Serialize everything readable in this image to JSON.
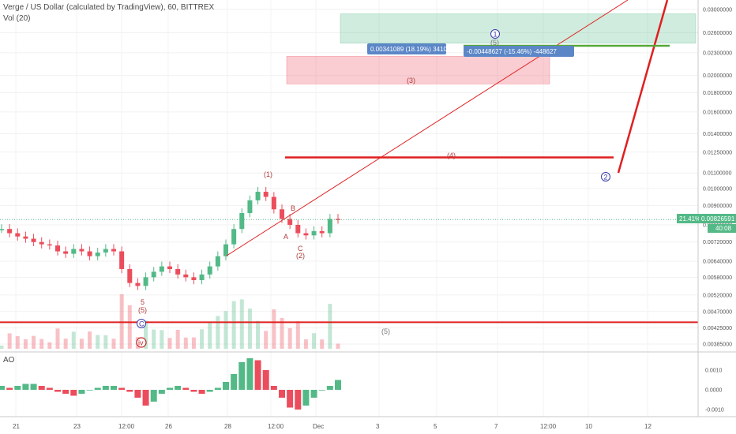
{
  "header": {
    "title": "Verge / US Dollar (calculated by TradingView), 60, BITTREX",
    "volume_label": "Vol (20)",
    "indicator_label": "AO"
  },
  "price_badge": {
    "percent": "21.41%",
    "price": "0.00826591",
    "countdown": "40:08"
  },
  "measure_labels": {
    "upper": "0.00341089 (18.19%) 34108",
    "lower": "-0.00448627 (-15.46%) -448627"
  },
  "colors": {
    "up": "#53b987",
    "down": "#eb4d5c",
    "level": "#e01f1f",
    "target": "#55a839",
    "wave_circle": "#3b3bb0",
    "badge": "#53b987",
    "measure_box": "#5b87c7"
  },
  "chart_data": [
    {
      "type": "candlestick",
      "title": "Verge / US Dollar (calculated by TradingView), 60, BITTREX",
      "y_scale": "log",
      "y_ticks": [
        "0.03000000",
        "0.02600000",
        "0.02300000",
        "0.02000000",
        "0.01800000",
        "0.01600000",
        "0.01400000",
        "0.01250000",
        "0.01100000",
        "0.01000000",
        "0.00900000",
        "0.00800000",
        "0.00720000",
        "0.00640000",
        "0.00580000",
        "0.00520000",
        "0.00470000",
        "0.00425000",
        "0.00385000"
      ],
      "x_ticks": [
        "21",
        "23",
        "12:00",
        "26",
        "28",
        "12:00",
        "Dec",
        "3",
        "5",
        "7",
        "12:00",
        "10",
        "12"
      ],
      "price_series": [
        0.0078,
        0.0076,
        0.00745,
        0.00735,
        0.0072,
        0.0071,
        0.00705,
        0.0068,
        0.0067,
        0.0069,
        0.0068,
        0.0066,
        0.00675,
        0.0069,
        0.0068,
        0.0061,
        0.0056,
        0.0055,
        0.0058,
        0.006,
        0.0062,
        0.0061,
        0.0059,
        0.0058,
        0.0057,
        0.0059,
        0.0062,
        0.0066,
        0.0071,
        0.0078,
        0.0086,
        0.0093,
        0.0098,
        0.0095,
        0.0088,
        0.0083,
        0.008,
        0.0076,
        0.0075,
        0.0077,
        0.0076,
        0.0083,
        0.00826591
      ],
      "levels": [
        {
          "label": "(4)",
          "value": 0.0121
        },
        {
          "label": "(5)",
          "value": 0.0044
        }
      ],
      "zones": [
        {
          "label": "(3)",
          "from": 0.019,
          "to": 0.0225
        },
        {
          "label": "(5)",
          "from": 0.0244,
          "to": 0.0292
        }
      ],
      "wave_labels": [
        "(1)",
        "A",
        "B",
        "C",
        "(2)",
        "5",
        "(5)",
        "1",
        "2"
      ],
      "circled_labels": [
        "C",
        "iv"
      ]
    },
    {
      "type": "bar",
      "title": "AO",
      "y_ticks": [
        "0.0010",
        "0.0000",
        "-0.0010"
      ],
      "values": [
        0.0002,
        0.0001,
        0.0002,
        0.0003,
        0.0003,
        0.0002,
        0.0001,
        -0.0001,
        -0.0002,
        -0.0003,
        -0.0002,
        0.0,
        0.0001,
        0.0002,
        0.0002,
        0.0001,
        -0.0001,
        -0.0004,
        -0.0008,
        -0.0006,
        -0.0002,
        0.0001,
        0.0002,
        0.0001,
        -0.0001,
        -0.0002,
        -0.0001,
        0.0001,
        0.0004,
        0.0008,
        0.0014,
        0.0016,
        0.0015,
        0.001,
        0.0002,
        -0.0004,
        -0.0009,
        -0.001,
        -0.0008,
        -0.0004,
        0.0,
        0.0002,
        0.0005
      ]
    }
  ]
}
